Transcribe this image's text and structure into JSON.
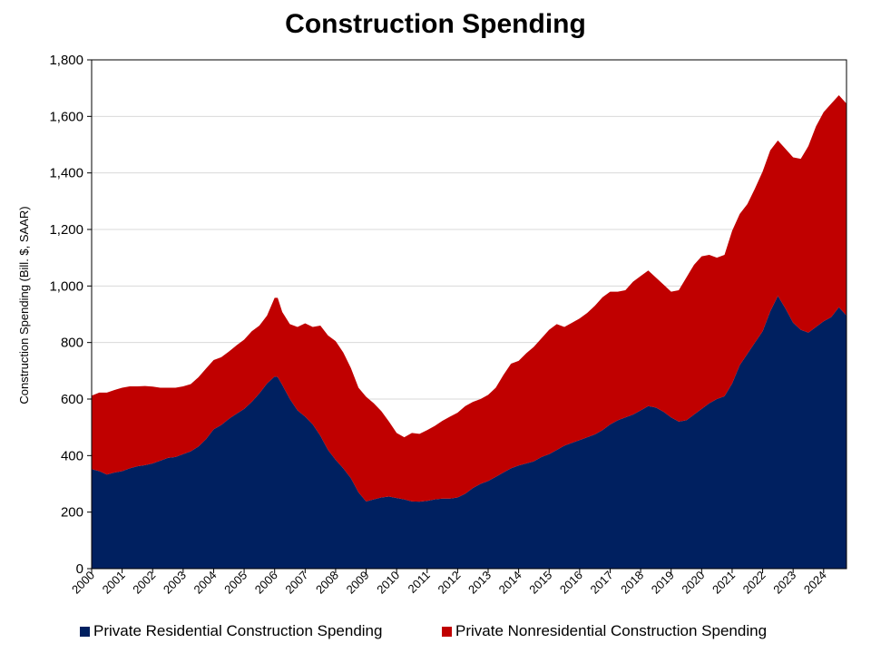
{
  "chart_data": {
    "type": "area",
    "stacked": true,
    "title": "Construction Spending",
    "ylabel": "Construction Spending (Bill. $, SAAR)",
    "xlabel": "",
    "ylim": [
      0,
      1800
    ],
    "y_ticks": [
      "0",
      "200",
      "400",
      "600",
      "800",
      "1,000",
      "1,200",
      "1,400",
      "1,600",
      "1,800"
    ],
    "y_tick_values": [
      0,
      200,
      400,
      600,
      800,
      1000,
      1200,
      1400,
      1600,
      1800
    ],
    "xlim": [
      2000.0,
      2024.75
    ],
    "x_ticks": [
      "2000",
      "2001",
      "2002",
      "2003",
      "2004",
      "2005",
      "2006",
      "2007",
      "2008",
      "2009",
      "2010",
      "2011",
      "2012",
      "2013",
      "2014",
      "2015",
      "2016",
      "2017",
      "2018",
      "2019",
      "2020",
      "2021",
      "2022",
      "2023",
      "2024"
    ],
    "grid": true,
    "legend_position": "bottom",
    "x": [
      2000.0,
      2000.25,
      2000.5,
      2000.75,
      2001.0,
      2001.25,
      2001.5,
      2001.75,
      2002.0,
      2002.25,
      2002.5,
      2002.75,
      2003.0,
      2003.25,
      2003.5,
      2003.75,
      2004.0,
      2004.25,
      2004.5,
      2004.75,
      2005.0,
      2005.25,
      2005.5,
      2005.75,
      2006.0,
      2006.1,
      2006.25,
      2006.5,
      2006.75,
      2007.0,
      2007.25,
      2007.5,
      2007.75,
      2008.0,
      2008.25,
      2008.5,
      2008.75,
      2009.0,
      2009.25,
      2009.5,
      2009.75,
      2010.0,
      2010.25,
      2010.5,
      2010.75,
      2011.0,
      2011.25,
      2011.5,
      2011.75,
      2012.0,
      2012.25,
      2012.5,
      2012.75,
      2013.0,
      2013.25,
      2013.5,
      2013.75,
      2014.0,
      2014.25,
      2014.5,
      2014.75,
      2015.0,
      2015.25,
      2015.5,
      2015.75,
      2016.0,
      2016.25,
      2016.5,
      2016.75,
      2017.0,
      2017.25,
      2017.5,
      2017.75,
      2018.0,
      2018.25,
      2018.5,
      2018.75,
      2019.0,
      2019.25,
      2019.5,
      2019.75,
      2020.0,
      2020.25,
      2020.5,
      2020.75,
      2021.0,
      2021.25,
      2021.5,
      2021.75,
      2022.0,
      2022.25,
      2022.5,
      2022.75,
      2023.0,
      2023.25,
      2023.5,
      2023.75,
      2024.0,
      2024.25,
      2024.5,
      2024.75
    ],
    "series": [
      {
        "name": "Private Residential Construction Spending",
        "color": "#002060",
        "values": [
          352,
          345,
          333,
          340,
          345,
          355,
          362,
          366,
          372,
          382,
          392,
          395,
          405,
          415,
          432,
          458,
          493,
          508,
          530,
          548,
          565,
          590,
          620,
          655,
          680,
          678,
          650,
          600,
          560,
          538,
          510,
          470,
          420,
          385,
          355,
          320,
          270,
          238,
          245,
          252,
          255,
          250,
          245,
          238,
          237,
          240,
          245,
          248,
          248,
          252,
          265,
          285,
          300,
          310,
          325,
          340,
          355,
          365,
          372,
          380,
          395,
          405,
          420,
          435,
          445,
          455,
          465,
          475,
          490,
          510,
          525,
          535,
          545,
          560,
          575,
          570,
          555,
          535,
          520,
          525,
          545,
          565,
          585,
          600,
          610,
          655,
          720,
          760,
          800,
          840,
          910,
          965,
          920,
          870,
          845,
          835,
          855,
          875,
          890,
          925,
          895
        ]
      },
      {
        "name": "Private Nonresidential Construction Spending",
        "color": "#C00000",
        "values": [
          260,
          278,
          290,
          292,
          295,
          290,
          283,
          280,
          272,
          258,
          248,
          245,
          240,
          238,
          245,
          250,
          245,
          240,
          238,
          242,
          245,
          250,
          240,
          240,
          278,
          280,
          258,
          265,
          295,
          330,
          345,
          390,
          405,
          420,
          410,
          390,
          370,
          370,
          340,
          305,
          265,
          230,
          220,
          242,
          240,
          250,
          260,
          275,
          290,
          300,
          310,
          305,
          300,
          305,
          315,
          345,
          370,
          370,
          390,
          405,
          420,
          440,
          445,
          420,
          425,
          430,
          440,
          455,
          470,
          470,
          455,
          450,
          470,
          475,
          480,
          460,
          450,
          445,
          465,
          505,
          530,
          540,
          525,
          500,
          500,
          540,
          535,
          530,
          545,
          565,
          570,
          550,
          565,
          585,
          605,
          660,
          710,
          740,
          755,
          750,
          750
        ]
      }
    ]
  }
}
